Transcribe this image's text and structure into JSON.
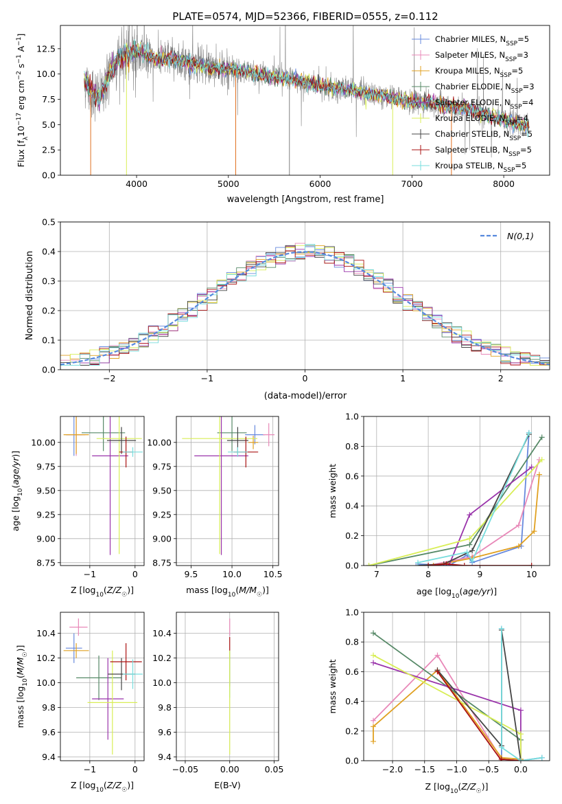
{
  "colors": {
    "Chabrier MILES": "#6688dd",
    "Salpeter MILES": "#e888b8",
    "Kroupa MILES": "#e0a020",
    "Chabrier ELODIE": "#558866",
    "Salpeter ELODIE": "#9933aa",
    "Kroupa ELODIE": "#d8ee55",
    "Chabrier STELIB": "#444444",
    "Salpeter STELIB": "#aa1111",
    "Kroupa STELIB": "#77dddd",
    "data": "#808080",
    "normal": "#5588dd",
    "orange": "#e07020"
  },
  "chart_data": [
    {
      "id": "spectrum",
      "type": "line",
      "title": "PLATE=0574, MJD=52366, FIBERID=0555, z=0.112",
      "xlabel": "wavelength [Angstrom, rest frame]",
      "ylabel": "Flux [f_λ10^-17 erg cm^-2 s^-1 A^-1]",
      "xlim": [
        3170,
        8500
      ],
      "ylim": [
        0,
        14.8
      ],
      "xticks": [
        4000,
        5000,
        6000,
        7000,
        8000
      ],
      "yticks": [
        0.0,
        2.5,
        5.0,
        7.5,
        10.0,
        12.5
      ],
      "grid": false,
      "legend_position": "top-right",
      "legend": [
        {
          "name": "Chabrier MILES",
          "nssp": "5"
        },
        {
          "name": "Salpeter MILES",
          "nssp": "3"
        },
        {
          "name": "Kroupa MILES",
          "nssp": "5"
        },
        {
          "name": "Chabrier ELODIE",
          "nssp": "3"
        },
        {
          "name": "Salpeter ELODIE",
          "nssp": "4"
        },
        {
          "name": "Kroupa ELODIE",
          "nssp": "4"
        },
        {
          "name": "Chabrier STELIB",
          "nssp": "5"
        },
        {
          "name": "Salpeter STELIB",
          "nssp": "5"
        },
        {
          "name": "Kroupa STELIB",
          "nssp": "5"
        }
      ],
      "continuum": [
        [
          3430,
          9.5
        ],
        [
          3500,
          8.4
        ],
        [
          3600,
          7.6
        ],
        [
          3700,
          10.0
        ],
        [
          3800,
          11.5
        ],
        [
          3900,
          12.0
        ],
        [
          4000,
          12.3
        ],
        [
          4200,
          11.5
        ],
        [
          4400,
          11.5
        ],
        [
          4600,
          11.0
        ],
        [
          4800,
          10.6
        ],
        [
          5000,
          10.5
        ],
        [
          5200,
          10.2
        ],
        [
          5500,
          9.7
        ],
        [
          5800,
          9.3
        ],
        [
          6000,
          8.8
        ],
        [
          6300,
          8.5
        ],
        [
          6600,
          8.0
        ],
        [
          6800,
          7.6
        ],
        [
          7000,
          7.2
        ],
        [
          7200,
          7.2
        ],
        [
          7400,
          6.8
        ],
        [
          7600,
          6.6
        ],
        [
          7800,
          6.0
        ],
        [
          8000,
          5.4
        ],
        [
          8200,
          5.0
        ],
        [
          8280,
          4.9
        ]
      ],
      "model_drops": [
        {
          "x": 3500,
          "depth": 0.0
        },
        {
          "x": 3890,
          "depth": 0.0
        },
        {
          "x": 5080,
          "depth": 0.0
        },
        {
          "x": 5665,
          "depth": 0.0
        },
        {
          "x": 6790,
          "depth": 0.0
        },
        {
          "x": 7430,
          "depth": 0.0
        }
      ]
    },
    {
      "id": "residuals",
      "type": "histogram",
      "xlabel": "(data-model)/error",
      "ylabel": "Normed distribution",
      "xlim": [
        -2.5,
        2.5
      ],
      "ylim": [
        0,
        0.5
      ],
      "xticks": [
        -2,
        -1,
        0,
        1,
        2
      ],
      "yticks": [
        0.0,
        0.1,
        0.2,
        0.3,
        0.4,
        0.5
      ],
      "grid": true,
      "bin_width": 0.1,
      "legend": "N(0,1)",
      "legend_position": "top-right"
    },
    {
      "id": "age-vs-Z",
      "type": "errorbar",
      "xlabel": "Z [log10(Z/Z☉)]",
      "ylabel": "age [log10(age/yr)]",
      "xlim": [
        -1.65,
        0.2
      ],
      "ylim": [
        8.72,
        10.27
      ],
      "xticks": [
        -1,
        0
      ],
      "yticks": [
        8.75,
        9.0,
        9.25,
        9.5,
        9.75,
        10.0
      ],
      "points": [
        {
          "series": "Chabrier MILES",
          "x": -1.35,
          "xerr": 0.18,
          "y": 10.08,
          "yerr": 0.22
        },
        {
          "series": "Salpeter MILES",
          "x": -1.3,
          "xerr": 0.2,
          "y": 10.08,
          "yerr": 0.22
        },
        {
          "series": "Kroupa MILES",
          "x": -1.3,
          "xerr": 0.28,
          "y": 10.08,
          "yerr": 0.2
        },
        {
          "series": "Chabrier ELODIE",
          "x": -0.7,
          "xerr": 0.48,
          "y": 10.1,
          "yerr": 0.19
        },
        {
          "series": "Salpeter ELODIE",
          "x": -0.55,
          "xerr": 0.4,
          "y": 9.86,
          "yerr": 1.03
        },
        {
          "series": "Kroupa ELODIE",
          "x": -0.35,
          "xerr": 0.5,
          "y": 10.04,
          "yerr": 1.2
        },
        {
          "series": "Chabrier STELIB",
          "x": -0.3,
          "xerr": 0.32,
          "y": 10.02,
          "yerr": 0.14
        },
        {
          "series": "Salpeter STELIB",
          "x": -0.2,
          "xerr": 0.15,
          "y": 9.9,
          "yerr": 0.16
        },
        {
          "series": "Kroupa STELIB",
          "x": -0.05,
          "xerr": 0.22,
          "y": 9.9,
          "yerr": 0.05
        }
      ]
    },
    {
      "id": "age-vs-mass",
      "type": "errorbar",
      "xlabel": "mass [log10(M/M☉)]",
      "ylabel": "",
      "xlim": [
        9.32,
        10.57
      ],
      "ylim": [
        8.72,
        10.27
      ],
      "xticks": [
        9.5,
        10.0,
        10.5
      ],
      "yticks": [
        8.75,
        9.0,
        9.25,
        9.5,
        9.75,
        10.0
      ],
      "points": [
        {
          "series": "Chabrier MILES",
          "x": 10.28,
          "xerr": 0.12,
          "y": 10.08,
          "yerr": 0.1
        },
        {
          "series": "Salpeter MILES",
          "x": 10.45,
          "xerr": 0.07,
          "y": 10.08,
          "yerr": 0.12
        },
        {
          "series": "Kroupa MILES",
          "x": 10.26,
          "xerr": 0.06,
          "y": 10.0,
          "yerr": 0.07
        },
        {
          "series": "Chabrier ELODIE",
          "x": 10.0,
          "xerr": 0.18,
          "y": 10.1,
          "yerr": 0.19
        },
        {
          "series": "Salpeter ELODIE",
          "x": 9.87,
          "xerr": 0.33,
          "y": 9.86,
          "yerr": 1.03
        },
        {
          "series": "Kroupa ELODIE",
          "x": 9.85,
          "xerr": 0.46,
          "y": 10.04,
          "yerr": 1.2
        },
        {
          "series": "Chabrier STELIB",
          "x": 10.07,
          "xerr": 0.13,
          "y": 10.02,
          "yerr": 0.14
        },
        {
          "series": "Salpeter STELIB",
          "x": 10.17,
          "xerr": 0.15,
          "y": 9.9,
          "yerr": 0.16
        },
        {
          "series": "Kroupa STELIB",
          "x": 10.07,
          "xerr": 0.12,
          "y": 9.9,
          "yerr": 0.05
        }
      ]
    },
    {
      "id": "weight-vs-age",
      "type": "line",
      "xlabel": "age [log10(age/yr)]",
      "ylabel": "mass weight",
      "xlim": [
        6.75,
        10.35
      ],
      "ylim": [
        0,
        1
      ],
      "xticks": [
        7,
        8,
        9,
        10
      ],
      "yticks": [
        0.0,
        0.2,
        0.4,
        0.6,
        0.8,
        1.0
      ],
      "grid": true,
      "series": [
        {
          "name": "Chabrier MILES",
          "x": [
            7.8,
            8.4,
            8.75,
            8.85,
            9.8,
            9.95
          ],
          "y": [
            0.01,
            0.0,
            0.07,
            0.02,
            0.13,
            0.89
          ]
        },
        {
          "name": "Salpeter MILES",
          "x": [
            8.0,
            8.85,
            9.75,
            10.15
          ],
          "y": [
            0.0,
            0.06,
            0.27,
            0.71
          ]
        },
        {
          "name": "Kroupa MILES",
          "x": [
            8.1,
            8.85,
            9.75,
            10.05,
            10.15
          ],
          "y": [
            0.0,
            0.05,
            0.13,
            0.23,
            0.61
          ]
        },
        {
          "name": "Chabrier ELODIE",
          "x": [
            6.85,
            8.8,
            10.2
          ],
          "y": [
            0.0,
            0.14,
            0.86
          ]
        },
        {
          "name": "Salpeter ELODIE",
          "x": [
            8.4,
            8.8,
            10.0
          ],
          "y": [
            0.0,
            0.34,
            0.66
          ]
        },
        {
          "name": "Kroupa ELODIE",
          "x": [
            6.85,
            8.8,
            10.2
          ],
          "y": [
            0.0,
            0.18,
            0.71
          ]
        },
        {
          "name": "Chabrier STELIB",
          "x": [
            7.8,
            8.3,
            8.85,
            9.95
          ],
          "y": [
            0.0,
            0.01,
            0.1,
            0.88
          ]
        },
        {
          "name": "Salpeter STELIB",
          "x": [
            8.0,
            8.35,
            8.7,
            10.0
          ],
          "y": [
            0.0,
            0.01,
            0.0,
            0.0
          ]
        },
        {
          "name": "Kroupa STELIB",
          "x": [
            7.8,
            8.75,
            8.85,
            9.95
          ],
          "y": [
            0.02,
            0.09,
            0.03,
            0.89
          ]
        }
      ]
    },
    {
      "id": "mass-vs-Z",
      "type": "errorbar",
      "xlabel": "Z [log10(Z/Z☉)]",
      "ylabel": "mass [log10(M/M☉)]",
      "xlim": [
        -1.65,
        0.2
      ],
      "ylim": [
        9.37,
        10.57
      ],
      "xticks": [
        -1,
        0
      ],
      "yticks": [
        9.4,
        9.6,
        9.8,
        10.0,
        10.2,
        10.4
      ],
      "points": [
        {
          "series": "Chabrier MILES",
          "x": -1.35,
          "xerr": 0.18,
          "y": 10.28,
          "yerr": 0.12
        },
        {
          "series": "Salpeter MILES",
          "x": -1.25,
          "xerr": 0.2,
          "y": 10.45,
          "yerr": 0.07
        },
        {
          "series": "Kroupa MILES",
          "x": -1.3,
          "xerr": 0.28,
          "y": 10.26,
          "yerr": 0.06
        },
        {
          "series": "Chabrier ELODIE",
          "x": -0.8,
          "xerr": 0.5,
          "y": 10.04,
          "yerr": 0.18
        },
        {
          "series": "Salpeter ELODIE",
          "x": -0.6,
          "xerr": 0.35,
          "y": 9.87,
          "yerr": 0.33
        },
        {
          "series": "Kroupa ELODIE",
          "x": -0.5,
          "xerr": 0.55,
          "y": 9.84,
          "yerr": 0.42
        },
        {
          "series": "Chabrier STELIB",
          "x": -0.3,
          "xerr": 0.3,
          "y": 10.07,
          "yerr": 0.13
        },
        {
          "series": "Salpeter STELIB",
          "x": -0.2,
          "xerr": 0.35,
          "y": 10.17,
          "yerr": 0.15
        },
        {
          "series": "Kroupa STELIB",
          "x": -0.05,
          "xerr": 0.22,
          "y": 10.07,
          "yerr": 0.12
        }
      ]
    },
    {
      "id": "mass-vs-ebv",
      "type": "errorbar",
      "xlabel": "E(B-V)",
      "ylabel": "",
      "xlim": [
        -0.06,
        0.055
      ],
      "ylim": [
        9.37,
        10.57
      ],
      "xticks": [
        -0.05,
        0.0,
        0.05
      ],
      "yticks": [
        9.4,
        9.6,
        9.8,
        10.0,
        10.2,
        10.4
      ],
      "points": [
        {
          "series": "Salpeter MILES",
          "x": 0.0,
          "xerr": 0,
          "y": 10.45,
          "yerr": 0.07
        },
        {
          "series": "Salpeter STELIB",
          "x": 0.0,
          "xerr": 0,
          "y": 10.17,
          "yerr": 0.2
        },
        {
          "series": "Kroupa STELIB",
          "x": 0.0,
          "xerr": 0,
          "y": 10.07,
          "yerr": 0.19
        },
        {
          "series": "Kroupa ELODIE",
          "x": 0.0,
          "xerr": 0,
          "y": 9.84,
          "yerr": 0.42
        }
      ]
    },
    {
      "id": "weight-vs-Z",
      "type": "line",
      "xlabel": "Z [log10(Z/Z☉)]",
      "ylabel": "mass weight",
      "xlim": [
        -2.45,
        0.45
      ],
      "ylim": [
        0,
        1
      ],
      "xticks": [
        -2.0,
        -1.5,
        -1.0,
        -0.5,
        0.0
      ],
      "yticks": [
        0.0,
        0.2,
        0.4,
        0.6,
        0.8,
        1.0
      ],
      "grid": true,
      "series": [
        {
          "name": "Chabrier MILES",
          "x": [
            -0.3,
            -0.3,
            0.0,
            0.33
          ],
          "y": [
            0.89,
            0.01,
            0.0,
            0.02
          ]
        },
        {
          "name": "Salpeter MILES",
          "x": [
            -2.3,
            -1.3,
            -0.3,
            0.0
          ],
          "y": [
            0.27,
            0.71,
            0.01,
            0.0
          ]
        },
        {
          "name": "Kroupa MILES",
          "x": [
            -2.3,
            -2.3,
            -1.3,
            -0.3,
            0.0
          ],
          "y": [
            0.13,
            0.23,
            0.61,
            0.02,
            0.01
          ]
        },
        {
          "name": "Chabrier ELODIE",
          "x": [
            -2.3,
            0.0,
            0.0
          ],
          "y": [
            0.86,
            0.14,
            0.0
          ]
        },
        {
          "name": "Salpeter ELODIE",
          "x": [
            -2.3,
            0.0,
            0.0
          ],
          "y": [
            0.66,
            0.34,
            0.0
          ]
        },
        {
          "name": "Kroupa ELODIE",
          "x": [
            -2.3,
            0.0,
            0.0
          ],
          "y": [
            0.71,
            0.18,
            0.0
          ]
        },
        {
          "name": "Chabrier STELIB",
          "x": [
            -1.3,
            -0.3,
            -0.3,
            0.0
          ],
          "y": [
            0.61,
            0.1,
            0.88,
            0.0
          ]
        },
        {
          "name": "Salpeter STELIB",
          "x": [
            -1.3,
            -0.3,
            -0.3,
            0.0
          ],
          "y": [
            0.6,
            0.0,
            0.01,
            0.0
          ]
        },
        {
          "name": "Kroupa STELIB",
          "x": [
            -0.3,
            -0.3,
            0.0,
            0.33
          ],
          "y": [
            0.89,
            0.09,
            0.0,
            0.02
          ]
        }
      ]
    }
  ]
}
